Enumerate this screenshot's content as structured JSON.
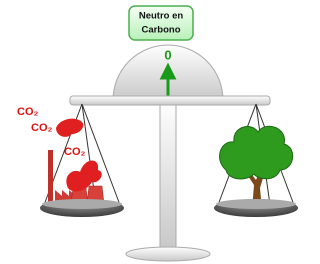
{
  "label": {
    "lines": [
      "Neutro en",
      "Carbono"
    ]
  },
  "gauge": {
    "reading": "0"
  },
  "emissions": [
    "CO₂",
    "CO₂",
    "CO₂"
  ]
}
